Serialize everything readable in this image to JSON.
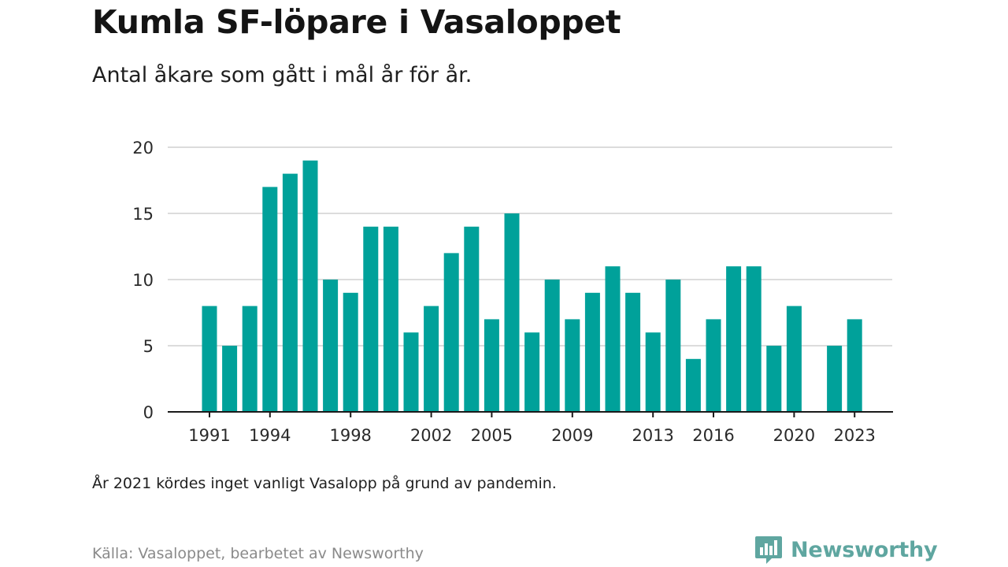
{
  "header": {
    "title": "Kumla SF-löpare i Vasaloppet",
    "subtitle": "Antal åkare som gått i mål år för år."
  },
  "footer": {
    "note": "År 2021 kördes inget vanligt Vasalopp på grund av pandemin.",
    "source": "Källa: Vasaloppet, bearbetet av Newsworthy",
    "brand": "Newsworthy",
    "brand_icon": "bar-chart-speech-bubble-icon"
  },
  "colors": {
    "bar": "#00A19A",
    "gridline": "#dcdcdc",
    "axis": "#1a1a1a",
    "brand": "#5fa6a0"
  },
  "chart_data": {
    "type": "bar",
    "title": "Kumla SF-löpare i Vasaloppet",
    "subtitle": "Antal åkare som gått i mål år för år.",
    "xlabel": "",
    "ylabel": "",
    "ylim": [
      0,
      20
    ],
    "yticks": [
      0,
      5,
      10,
      15,
      20
    ],
    "xticks": [
      1991,
      1994,
      1998,
      2002,
      2005,
      2009,
      2013,
      2016,
      2020,
      2023
    ],
    "grid": true,
    "x": [
      1991,
      1992,
      1993,
      1994,
      1995,
      1996,
      1997,
      1998,
      1999,
      2000,
      2001,
      2002,
      2003,
      2004,
      2005,
      2006,
      2007,
      2008,
      2009,
      2010,
      2011,
      2012,
      2013,
      2014,
      2015,
      2016,
      2017,
      2018,
      2019,
      2020,
      2021,
      2022,
      2023
    ],
    "values": [
      8,
      5,
      8,
      17,
      18,
      19,
      10,
      9,
      14,
      14,
      6,
      8,
      12,
      14,
      7,
      15,
      6,
      10,
      7,
      9,
      11,
      9,
      6,
      10,
      4,
      7,
      11,
      11,
      5,
      8,
      0,
      5,
      7
    ]
  }
}
